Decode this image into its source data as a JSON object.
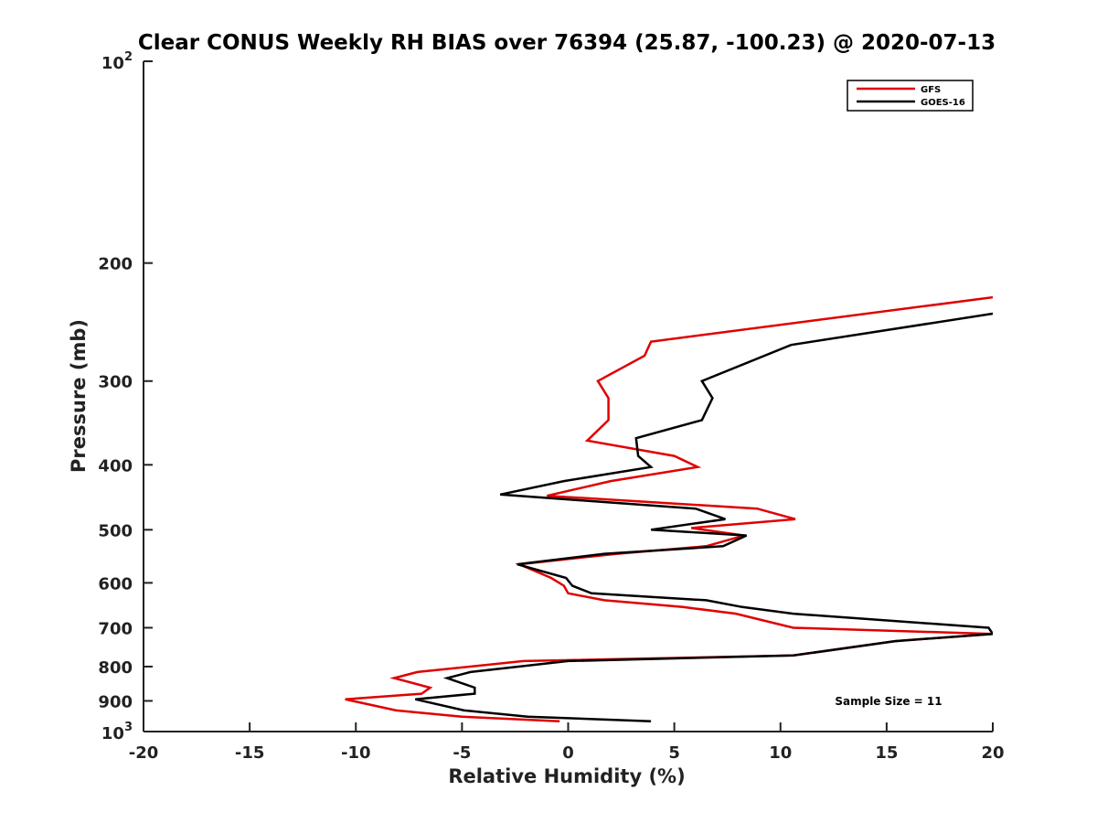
{
  "chart_data": {
    "type": "line",
    "title": "Clear CONUS Weekly RH BIAS over 76394 (25.87, -100.23) @ 2020-07-13",
    "xlabel": "Relative Humidity (%)",
    "ylabel": "Pressure (mb)",
    "xlim": [
      -20,
      20
    ],
    "ylim": [
      1000,
      100
    ],
    "y_scale": "log",
    "x_ticks": [
      {
        "value": -20,
        "label": "-20"
      },
      {
        "value": -15,
        "label": "-15"
      },
      {
        "value": -10,
        "label": "-10"
      },
      {
        "value": -5,
        "label": "-5"
      },
      {
        "value": 0,
        "label": "0"
      },
      {
        "value": 5,
        "label": "5"
      },
      {
        "value": 10,
        "label": "10"
      },
      {
        "value": 15,
        "label": "15"
      },
      {
        "value": 20,
        "label": "20"
      }
    ],
    "y_ticks": [
      {
        "value": 200,
        "label": "200"
      },
      {
        "value": 300,
        "label": "300"
      },
      {
        "value": 400,
        "label": "400"
      },
      {
        "value": 500,
        "label": "500"
      },
      {
        "value": 600,
        "label": "600"
      },
      {
        "value": 700,
        "label": "700"
      },
      {
        "value": 800,
        "label": "800"
      },
      {
        "value": 900,
        "label": "900"
      }
    ],
    "y_tick_top": {
      "value": 100,
      "base": "10",
      "exp": "2"
    },
    "y_tick_bottom": {
      "value": 1000,
      "base": "10",
      "exp": "3"
    },
    "grid": false,
    "legend_position": "top-right",
    "annotation": "Sample Size = 11",
    "series": [
      {
        "name": "GFS",
        "color": "#e00000",
        "points": [
          [
            20,
            225
          ],
          [
            3.9,
            262
          ],
          [
            3.6,
            275
          ],
          [
            1.4,
            300
          ],
          [
            1.9,
            318
          ],
          [
            1.9,
            343
          ],
          [
            0.9,
            368
          ],
          [
            5,
            388
          ],
          [
            6.1,
            403
          ],
          [
            2,
            423
          ],
          [
            -1,
            445
          ],
          [
            8.9,
            465
          ],
          [
            10.7,
            482
          ],
          [
            5.8,
            497
          ],
          [
            8.3,
            510
          ],
          [
            6.5,
            529
          ],
          [
            2.3,
            543
          ],
          [
            -2.3,
            563
          ],
          [
            -0.8,
            590
          ],
          [
            -0.2,
            606
          ],
          [
            0,
            622
          ],
          [
            1.7,
            637
          ],
          [
            5.4,
            652
          ],
          [
            7.9,
            667
          ],
          [
            10.6,
            700
          ],
          [
            20,
            715
          ],
          [
            15.4,
            733
          ],
          [
            10.6,
            770
          ],
          [
            -2.1,
            785
          ],
          [
            -7.1,
            815
          ],
          [
            -8.2,
            832
          ],
          [
            -6.5,
            860
          ],
          [
            -6.9,
            878
          ],
          [
            -10.5,
            895
          ],
          [
            -8.1,
            930
          ],
          [
            -5,
            950
          ],
          [
            -0.4,
            965
          ]
        ]
      },
      {
        "name": "GOES-16",
        "color": "#000000",
        "points": [
          [
            20,
            238
          ],
          [
            10.5,
            265
          ],
          [
            6.3,
            300
          ],
          [
            6.8,
            318
          ],
          [
            6.3,
            343
          ],
          [
            3.2,
            365
          ],
          [
            3.3,
            388
          ],
          [
            3.9,
            403
          ],
          [
            -0.2,
            423
          ],
          [
            -3.2,
            443
          ],
          [
            6,
            465
          ],
          [
            7.4,
            482
          ],
          [
            3.9,
            500
          ],
          [
            8.4,
            510
          ],
          [
            7.3,
            529
          ],
          [
            1.7,
            543
          ],
          [
            -2.4,
            563
          ],
          [
            -0.1,
            590
          ],
          [
            0.2,
            606
          ],
          [
            1.1,
            622
          ],
          [
            6.5,
            637
          ],
          [
            8.2,
            652
          ],
          [
            10.6,
            667
          ],
          [
            19.8,
            700
          ],
          [
            20,
            715
          ],
          [
            15.4,
            733
          ],
          [
            10.6,
            770
          ],
          [
            0,
            785
          ],
          [
            -4.6,
            815
          ],
          [
            -5.7,
            832
          ],
          [
            -4.4,
            860
          ],
          [
            -4.4,
            878
          ],
          [
            -7.2,
            895
          ],
          [
            -4.9,
            930
          ],
          [
            -1.9,
            950
          ],
          [
            3.9,
            965
          ]
        ]
      }
    ]
  }
}
